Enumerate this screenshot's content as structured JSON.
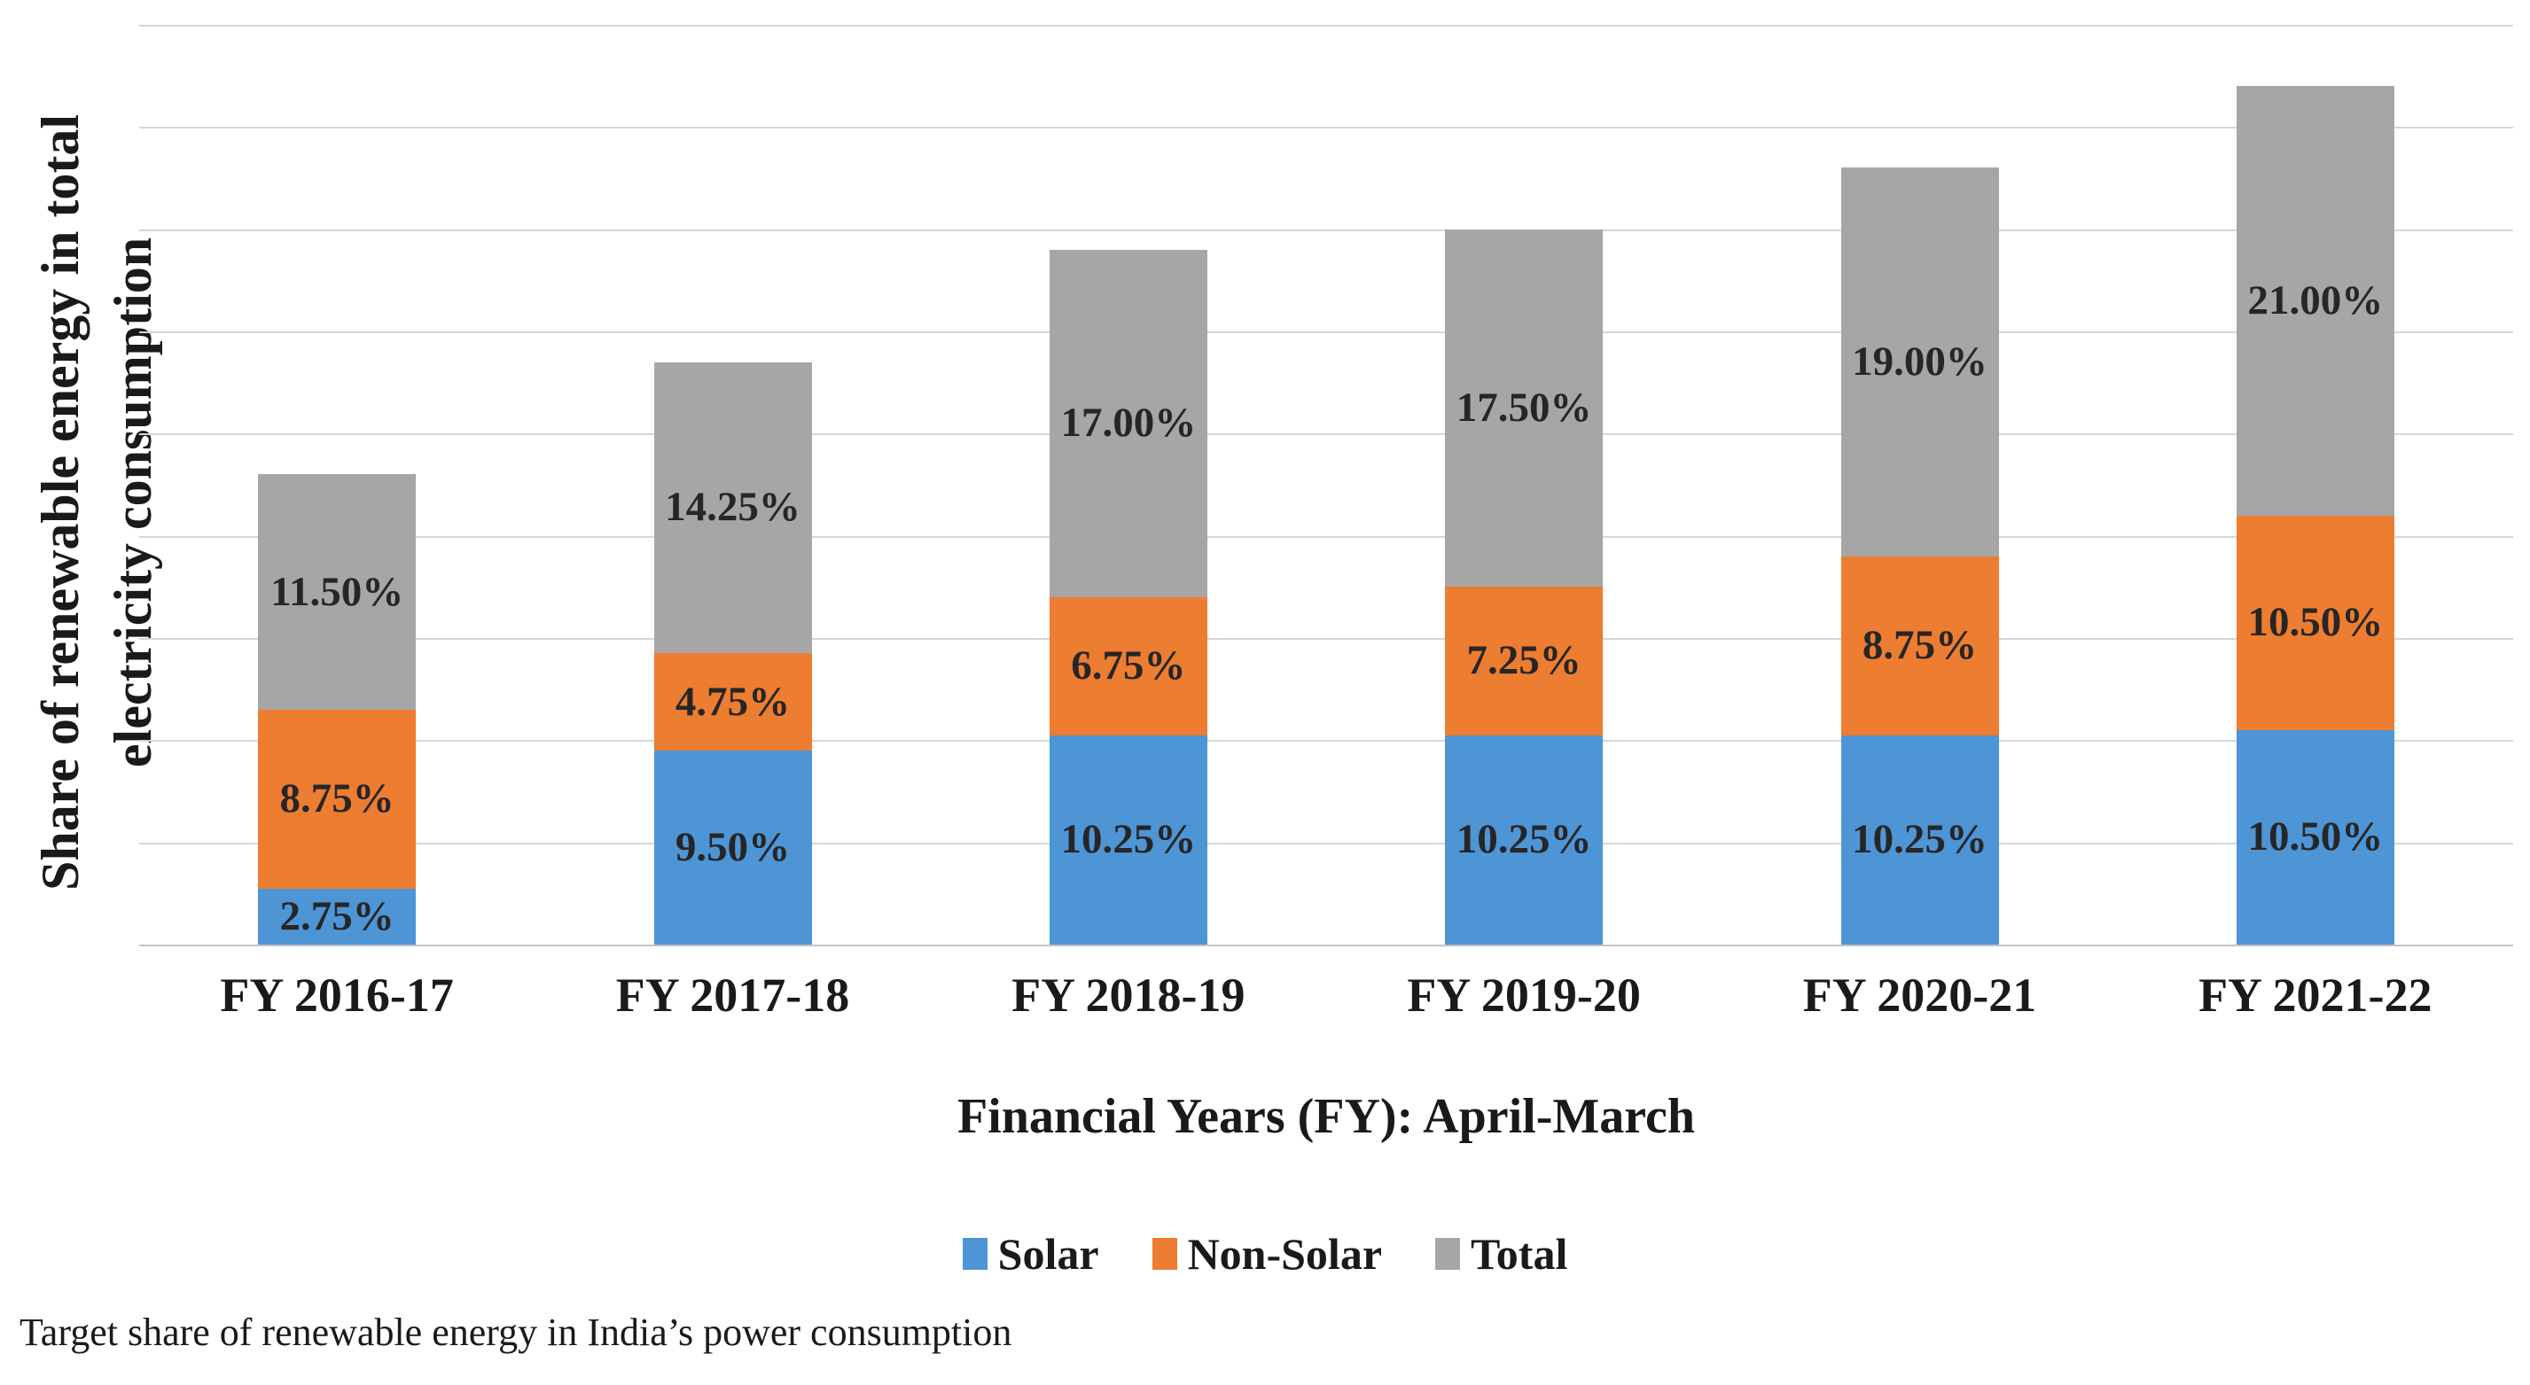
{
  "page": {
    "background": "#ffffff"
  },
  "colors": {
    "solar": "#4e95d6",
    "non_solar": "#ed7d31",
    "total": "#a6a6a6",
    "gridline": "#d6d6d6",
    "axis_line": "#c4c4c4",
    "label_text": "#262626"
  },
  "chart_data": {
    "type": "bar",
    "stacked": true,
    "categories": [
      "FY 2016-17",
      "FY 2017-18",
      "FY 2018-19",
      "FY 2019-20",
      "FY 2020-21",
      "FY 2021-22"
    ],
    "series": [
      {
        "name": "Solar",
        "color_key": "solar",
        "values": [
          2.75,
          9.5,
          10.25,
          10.25,
          10.25,
          10.5
        ],
        "labels": [
          "2.75%",
          "9.50%",
          "10.25%",
          "10.25%",
          "10.25%",
          "10.50%"
        ]
      },
      {
        "name": "Non-Solar",
        "color_key": "non_solar",
        "values": [
          8.75,
          4.75,
          6.75,
          7.25,
          8.75,
          10.5
        ],
        "labels": [
          "8.75%",
          "4.75%",
          "6.75%",
          "7.25%",
          "8.75%",
          "10.50%"
        ]
      },
      {
        "name": "Total",
        "color_key": "total",
        "values": [
          11.5,
          14.25,
          17.0,
          17.5,
          19.0,
          21.0
        ],
        "labels": [
          "11.50%",
          "14.25%",
          "17.00%",
          "17.50%",
          "19.00%",
          "21.00%"
        ]
      }
    ],
    "xlabel": "Financial Years (FY): April-March",
    "ylabel_line1": "Share of renewable energy in total",
    "ylabel_line2": "electricity consumption",
    "ylim": [
      0,
      45
    ],
    "grid_step": 5,
    "grid": true,
    "y_tick_labels_shown": false,
    "legend_position": "bottom"
  },
  "caption": "Target share of renewable energy in India’s power consumption"
}
